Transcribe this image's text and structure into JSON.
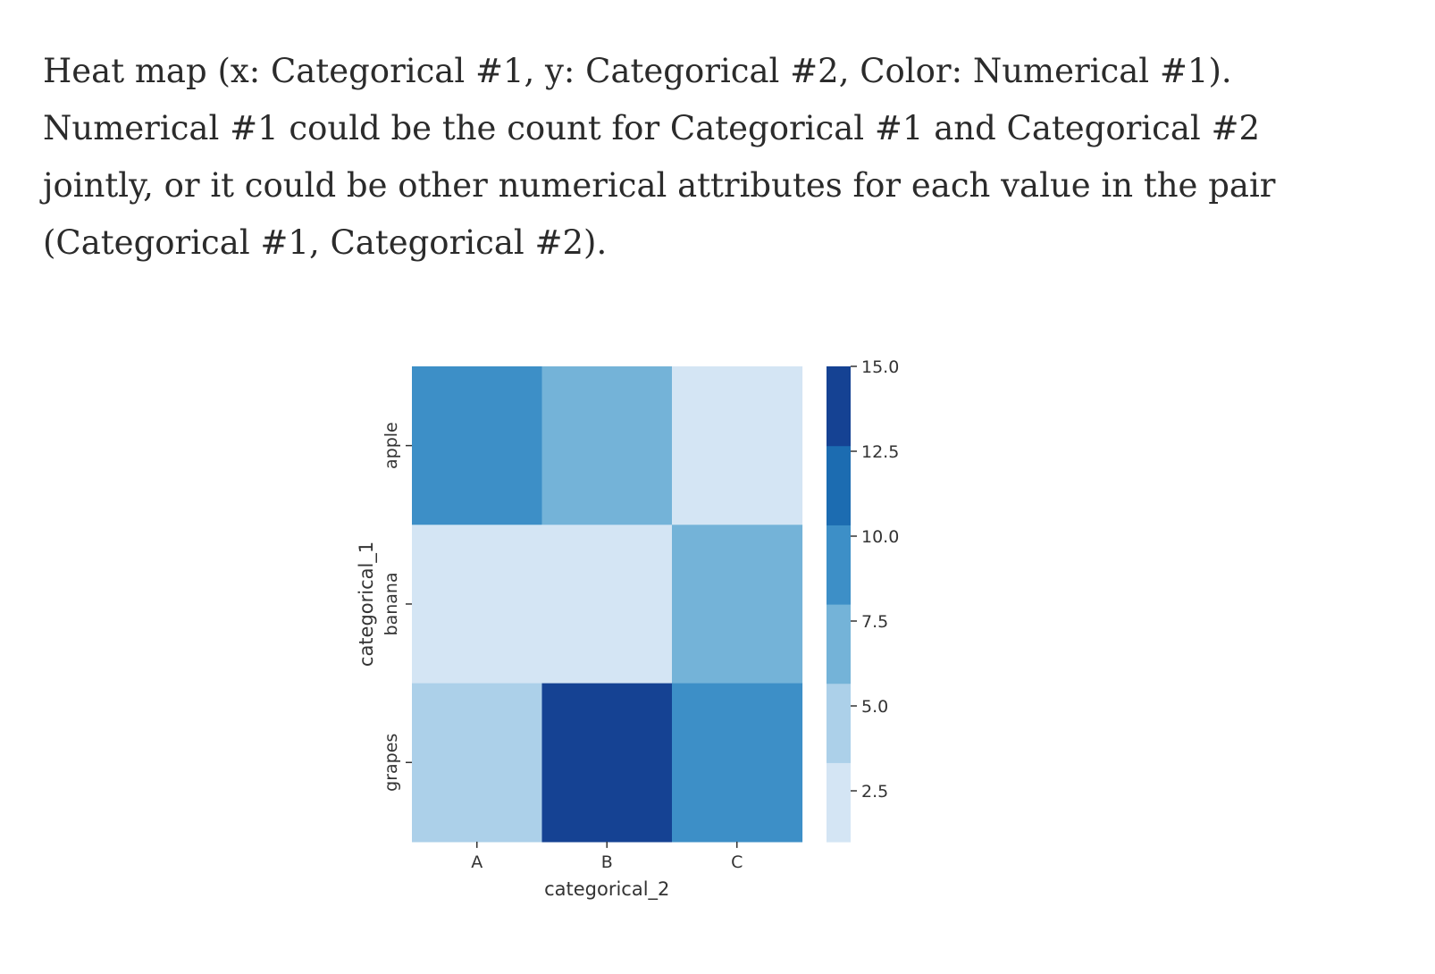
{
  "caption": "Heat map (x: Categorical #1, y: Categorical #2, Color: Numerical #1). Numerical #1 could be the count for Categorical #1 and Categorical #2 jointly, or it could be other numerical attributes for each value in the pair (Categorical #1, Categorical #2).",
  "chart_data": {
    "type": "heatmap",
    "x_categories": [
      "A",
      "B",
      "C"
    ],
    "y_categories": [
      "apple",
      "banana",
      "grapes"
    ],
    "values": [
      [
        10,
        7,
        2
      ],
      [
        2,
        2,
        7
      ],
      [
        4,
        15,
        10
      ]
    ],
    "xlabel": "categorical_2",
    "ylabel": "categorical_1",
    "colorbar": {
      "min": 1,
      "max": 15,
      "ticks": [
        2.5,
        5.0,
        7.5,
        10.0,
        12.5,
        15.0
      ],
      "tick_labels": [
        "2.5",
        "5.0",
        "7.5",
        "10.0",
        "12.5",
        "15.0"
      ],
      "bins": [
        {
          "from": 1.0,
          "to": 3.333,
          "color": "#d4e5f4"
        },
        {
          "from": 3.333,
          "to": 5.667,
          "color": "#acd0e9"
        },
        {
          "from": 5.667,
          "to": 8.0,
          "color": "#74b3d8"
        },
        {
          "from": 8.0,
          "to": 10.333,
          "color": "#3d8fc7"
        },
        {
          "from": 10.333,
          "to": 12.667,
          "color": "#1c6cb1"
        },
        {
          "from": 12.667,
          "to": 15.0,
          "color": "#154293"
        }
      ]
    },
    "colormap": "Blues",
    "grid": false
  }
}
